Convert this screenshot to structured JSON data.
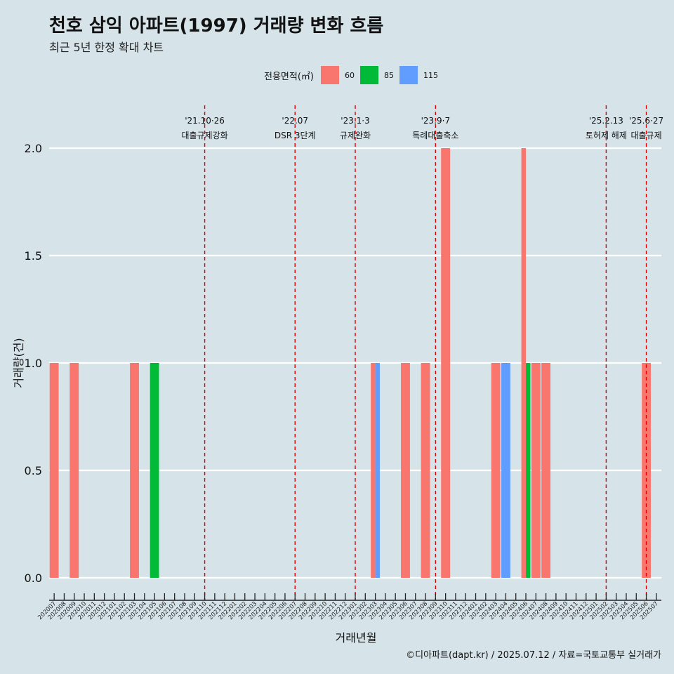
{
  "header": {
    "title": "천호 삼익 아파트(1997) 거래량 변화 흐름",
    "subtitle": "최근 5년 한정 확대 차트"
  },
  "legend": {
    "title": "전용면적(㎡)",
    "items": [
      {
        "label": "60",
        "color": "#F8766D"
      },
      {
        "label": "85",
        "color": "#00BA38"
      },
      {
        "label": "115",
        "color": "#619CFF"
      }
    ]
  },
  "caption": "©디아파트(dapt.kr) / 2025.07.12 / 자료=국토교통부 실거래가",
  "chart_data": {
    "type": "bar",
    "xlabel": "거래년월",
    "ylabel": "거래량(건)",
    "ylim": [
      0,
      2
    ],
    "yticks": [
      "0.0",
      "0.5",
      "1.0",
      "1.5",
      "2.0"
    ],
    "grid": "horizontal",
    "legend_position": "top",
    "categories": [
      "202007",
      "202008",
      "202009",
      "202010",
      "202011",
      "202012",
      "202101",
      "202102",
      "202103",
      "202104",
      "202105",
      "202106",
      "202107",
      "202108",
      "202109",
      "202110",
      "202111",
      "202112",
      "202201",
      "202202",
      "202203",
      "202204",
      "202205",
      "202206",
      "202207",
      "202208",
      "202209",
      "202210",
      "202211",
      "202212",
      "202301",
      "202302",
      "202303",
      "202304",
      "202305",
      "202306",
      "202307",
      "202308",
      "202309",
      "202310",
      "202311",
      "202312",
      "202401",
      "202402",
      "202403",
      "202404",
      "202405",
      "202406",
      "202407",
      "202408",
      "202409",
      "202410",
      "202411",
      "202412",
      "202501",
      "202502",
      "202503",
      "202504",
      "202505",
      "202506",
      "202507"
    ],
    "series": [
      {
        "name": "60",
        "color": "#F8766D",
        "values": [
          1,
          0,
          1,
          0,
          0,
          0,
          0,
          0,
          1,
          0,
          0,
          0,
          0,
          0,
          0,
          0,
          0,
          0,
          0,
          0,
          0,
          0,
          0,
          0,
          0,
          0,
          0,
          0,
          0,
          0,
          0,
          0,
          1,
          0,
          0,
          1,
          0,
          1,
          0,
          2,
          0,
          0,
          0,
          0,
          1,
          0,
          0,
          2,
          1,
          1,
          0,
          0,
          0,
          0,
          0,
          0,
          0,
          0,
          0,
          1,
          0
        ]
      },
      {
        "name": "85",
        "color": "#00BA38",
        "values": [
          0,
          0,
          0,
          0,
          0,
          0,
          0,
          0,
          0,
          0,
          1,
          0,
          0,
          0,
          0,
          0,
          0,
          0,
          0,
          0,
          0,
          0,
          0,
          0,
          0,
          0,
          0,
          0,
          0,
          0,
          0,
          0,
          0,
          0,
          0,
          0,
          0,
          0,
          0,
          0,
          0,
          0,
          0,
          0,
          0,
          0,
          0,
          1,
          0,
          0,
          0,
          0,
          0,
          0,
          0,
          0,
          0,
          0,
          0,
          0,
          0
        ]
      },
      {
        "name": "115",
        "color": "#619CFF",
        "values": [
          0,
          0,
          0,
          0,
          0,
          0,
          0,
          0,
          0,
          0,
          0,
          0,
          0,
          0,
          0,
          0,
          0,
          0,
          0,
          0,
          0,
          0,
          0,
          0,
          0,
          0,
          0,
          0,
          0,
          0,
          0,
          0,
          1,
          0,
          0,
          0,
          0,
          0,
          0,
          0,
          0,
          0,
          0,
          0,
          0,
          1,
          0,
          0,
          0,
          0,
          0,
          0,
          0,
          0,
          0,
          0,
          0,
          0,
          0,
          0,
          0
        ]
      }
    ],
    "annotations": [
      {
        "month": "202110",
        "date": "'21.10·26",
        "text": "대출규제강화"
      },
      {
        "month": "202207",
        "date": "'22.07",
        "text": "DSR 3단계"
      },
      {
        "month": "202301",
        "date": "'23.1·3",
        "text": "규제완화"
      },
      {
        "month": "202309",
        "date": "'23.9·7",
        "text": "특례대출축소"
      },
      {
        "month": "202502",
        "date": "'25.2.13",
        "text": "토허제 해제"
      },
      {
        "month": "202506",
        "date": "'25.6·27",
        "text": "대출규제"
      }
    ],
    "reference_line_color": "#E00000"
  }
}
